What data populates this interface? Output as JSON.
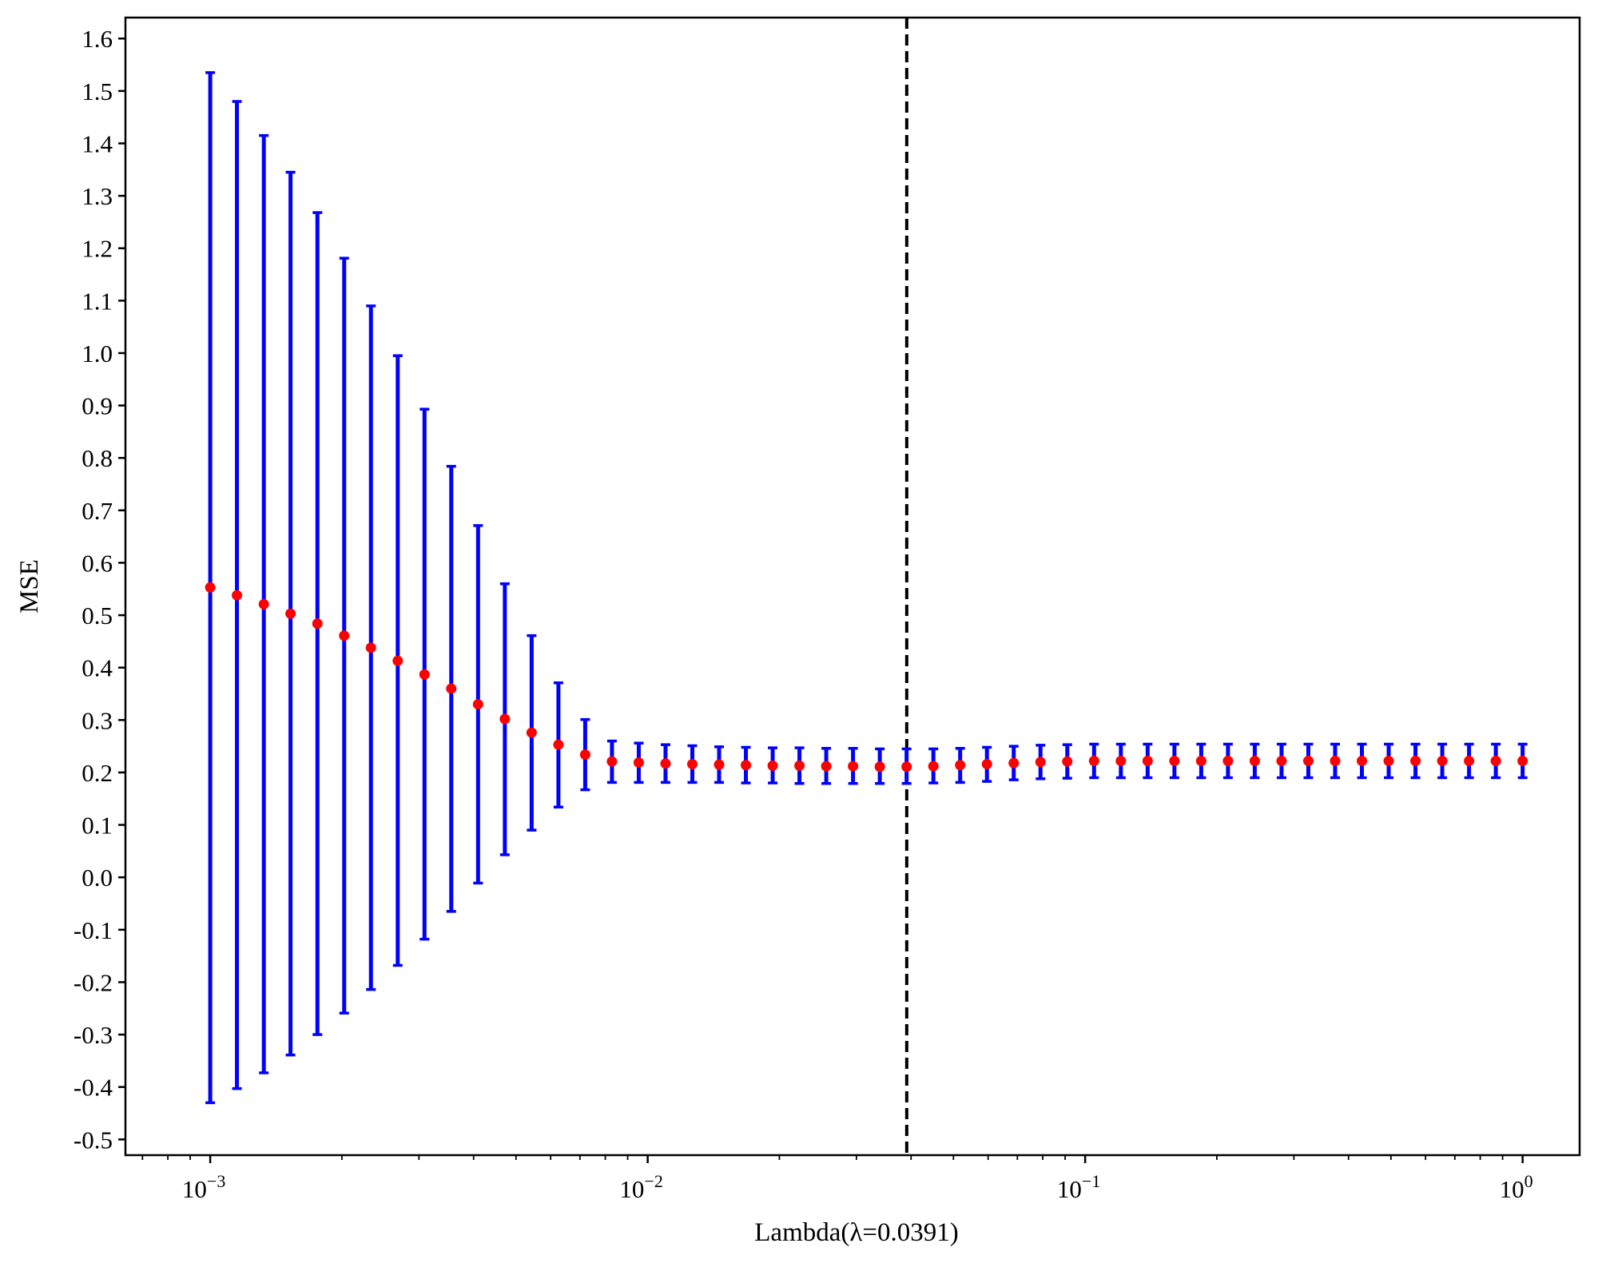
{
  "chart_data": {
    "type": "scatter",
    "title": "",
    "xlabel": "Lambda(λ=0.0391)",
    "ylabel": "MSE",
    "x_scale": "log",
    "xlim": [
      0.00064,
      1.35
    ],
    "ylim": [
      -0.53,
      1.64
    ],
    "grid": false,
    "legend": "none",
    "x_ticks": [
      {
        "value": 0.001,
        "label": "10",
        "exp": "−3"
      },
      {
        "value": 0.01,
        "label": "10",
        "exp": "−2"
      },
      {
        "value": 0.1,
        "label": "10",
        "exp": "−1"
      },
      {
        "value": 1,
        "label": "10",
        "exp": "0"
      }
    ],
    "y_ticks": [
      {
        "value": 1.6,
        "label": "1.6"
      },
      {
        "value": 1.5,
        "label": "1.5"
      },
      {
        "value": 1.4,
        "label": "1.4"
      },
      {
        "value": 1.3,
        "label": "1.3"
      },
      {
        "value": 1.2,
        "label": "1.2"
      },
      {
        "value": 1.1,
        "label": "1.1"
      },
      {
        "value": 1.0,
        "label": "1.0"
      },
      {
        "value": 0.9,
        "label": "0.9"
      },
      {
        "value": 0.8,
        "label": "0.8"
      },
      {
        "value": 0.7,
        "label": "0.7"
      },
      {
        "value": 0.6,
        "label": "0.6"
      },
      {
        "value": 0.5,
        "label": "0.5"
      },
      {
        "value": 0.4,
        "label": "0.4"
      },
      {
        "value": 0.3,
        "label": "0.3"
      },
      {
        "value": 0.2,
        "label": "0.2"
      },
      {
        "value": 0.1,
        "label": "0.1"
      },
      {
        "value": 0.0,
        "label": "0.0"
      },
      {
        "value": -0.1,
        "label": "-0.1"
      },
      {
        "value": -0.2,
        "label": "-0.2"
      },
      {
        "value": -0.3,
        "label": "-0.3"
      },
      {
        "value": -0.4,
        "label": "-0.4"
      },
      {
        "value": -0.5,
        "label": "-0.5"
      }
    ],
    "vline": {
      "x": 0.0391,
      "color": "#000000",
      "style": "dashed"
    },
    "series": [
      {
        "marker_color": "#ff0000",
        "errorbar_color": "#0000ff",
        "points": [
          {
            "x": 0.001,
            "y": 0.553,
            "err_low": -0.43,
            "err_high": 1.535
          },
          {
            "x": 0.001151,
            "y": 0.538,
            "err_low": -0.403,
            "err_high": 1.48
          },
          {
            "x": 0.001326,
            "y": 0.521,
            "err_low": -0.373,
            "err_high": 1.415
          },
          {
            "x": 0.001526,
            "y": 0.503,
            "err_low": -0.339,
            "err_high": 1.345
          },
          {
            "x": 0.001758,
            "y": 0.484,
            "err_low": -0.3,
            "err_high": 1.268
          },
          {
            "x": 0.002024,
            "y": 0.461,
            "err_low": -0.259,
            "err_high": 1.181
          },
          {
            "x": 0.00233,
            "y": 0.438,
            "err_low": -0.214,
            "err_high": 1.09
          },
          {
            "x": 0.002683,
            "y": 0.413,
            "err_low": -0.168,
            "err_high": 0.995
          },
          {
            "x": 0.003089,
            "y": 0.387,
            "err_low": -0.118,
            "err_high": 0.893
          },
          {
            "x": 0.003556,
            "y": 0.36,
            "err_low": -0.065,
            "err_high": 0.784
          },
          {
            "x": 0.004095,
            "y": 0.33,
            "err_low": -0.011,
            "err_high": 0.671
          },
          {
            "x": 0.004715,
            "y": 0.302,
            "err_low": 0.043,
            "err_high": 0.56
          },
          {
            "x": 0.005429,
            "y": 0.276,
            "err_low": 0.09,
            "err_high": 0.461
          },
          {
            "x": 0.006251,
            "y": 0.253,
            "err_low": 0.134,
            "err_high": 0.371
          },
          {
            "x": 0.007197,
            "y": 0.234,
            "err_low": 0.167,
            "err_high": 0.301
          },
          {
            "x": 0.008286,
            "y": 0.221,
            "err_low": 0.181,
            "err_high": 0.26
          },
          {
            "x": 0.009541,
            "y": 0.219,
            "err_low": 0.181,
            "err_high": 0.256
          },
          {
            "x": 0.010985,
            "y": 0.217,
            "err_low": 0.181,
            "err_high": 0.253
          },
          {
            "x": 0.012649,
            "y": 0.216,
            "err_low": 0.181,
            "err_high": 0.251
          },
          {
            "x": 0.014563,
            "y": 0.215,
            "err_low": 0.181,
            "err_high": 0.249
          },
          {
            "x": 0.016768,
            "y": 0.214,
            "err_low": 0.18,
            "err_high": 0.248
          },
          {
            "x": 0.019307,
            "y": 0.213,
            "err_low": 0.18,
            "err_high": 0.247
          },
          {
            "x": 0.02223,
            "y": 0.213,
            "err_low": 0.179,
            "err_high": 0.247
          },
          {
            "x": 0.025595,
            "y": 0.212,
            "err_low": 0.179,
            "err_high": 0.246
          },
          {
            "x": 0.029471,
            "y": 0.212,
            "err_low": 0.179,
            "err_high": 0.246
          },
          {
            "x": 0.033932,
            "y": 0.211,
            "err_low": 0.179,
            "err_high": 0.245
          },
          {
            "x": 0.039069,
            "y": 0.211,
            "err_low": 0.179,
            "err_high": 0.245
          },
          {
            "x": 0.044984,
            "y": 0.212,
            "err_low": 0.18,
            "err_high": 0.245
          },
          {
            "x": 0.051795,
            "y": 0.214,
            "err_low": 0.181,
            "err_high": 0.246
          },
          {
            "x": 0.059636,
            "y": 0.216,
            "err_low": 0.183,
            "err_high": 0.248
          },
          {
            "x": 0.068665,
            "y": 0.218,
            "err_low": 0.186,
            "err_high": 0.25
          },
          {
            "x": 0.07906,
            "y": 0.22,
            "err_low": 0.188,
            "err_high": 0.252
          },
          {
            "x": 0.09103,
            "y": 0.221,
            "err_low": 0.189,
            "err_high": 0.253
          },
          {
            "x": 0.104811,
            "y": 0.222,
            "err_low": 0.19,
            "err_high": 0.254
          },
          {
            "x": 0.120679,
            "y": 0.222,
            "err_low": 0.19,
            "err_high": 0.254
          },
          {
            "x": 0.13895,
            "y": 0.222,
            "err_low": 0.19,
            "err_high": 0.254
          },
          {
            "x": 0.159986,
            "y": 0.222,
            "err_low": 0.19,
            "err_high": 0.254
          },
          {
            "x": 0.184207,
            "y": 0.222,
            "err_low": 0.19,
            "err_high": 0.254
          },
          {
            "x": 0.212095,
            "y": 0.222,
            "err_low": 0.19,
            "err_high": 0.254
          },
          {
            "x": 0.244205,
            "y": 0.222,
            "err_low": 0.19,
            "err_high": 0.254
          },
          {
            "x": 0.281177,
            "y": 0.222,
            "err_low": 0.19,
            "err_high": 0.254
          },
          {
            "x": 0.323746,
            "y": 0.222,
            "err_low": 0.19,
            "err_high": 0.254
          },
          {
            "x": 0.372759,
            "y": 0.222,
            "err_low": 0.19,
            "err_high": 0.254
          },
          {
            "x": 0.429193,
            "y": 0.222,
            "err_low": 0.19,
            "err_high": 0.254
          },
          {
            "x": 0.494171,
            "y": 0.222,
            "err_low": 0.19,
            "err_high": 0.254
          },
          {
            "x": 0.568987,
            "y": 0.222,
            "err_low": 0.19,
            "err_high": 0.254
          },
          {
            "x": 0.655129,
            "y": 0.222,
            "err_low": 0.19,
            "err_high": 0.254
          },
          {
            "x": 0.754312,
            "y": 0.222,
            "err_low": 0.19,
            "err_high": 0.254
          },
          {
            "x": 0.868511,
            "y": 0.222,
            "err_low": 0.19,
            "err_high": 0.254
          },
          {
            "x": 1.0,
            "y": 0.222,
            "err_low": 0.19,
            "err_high": 0.254
          }
        ]
      }
    ]
  }
}
